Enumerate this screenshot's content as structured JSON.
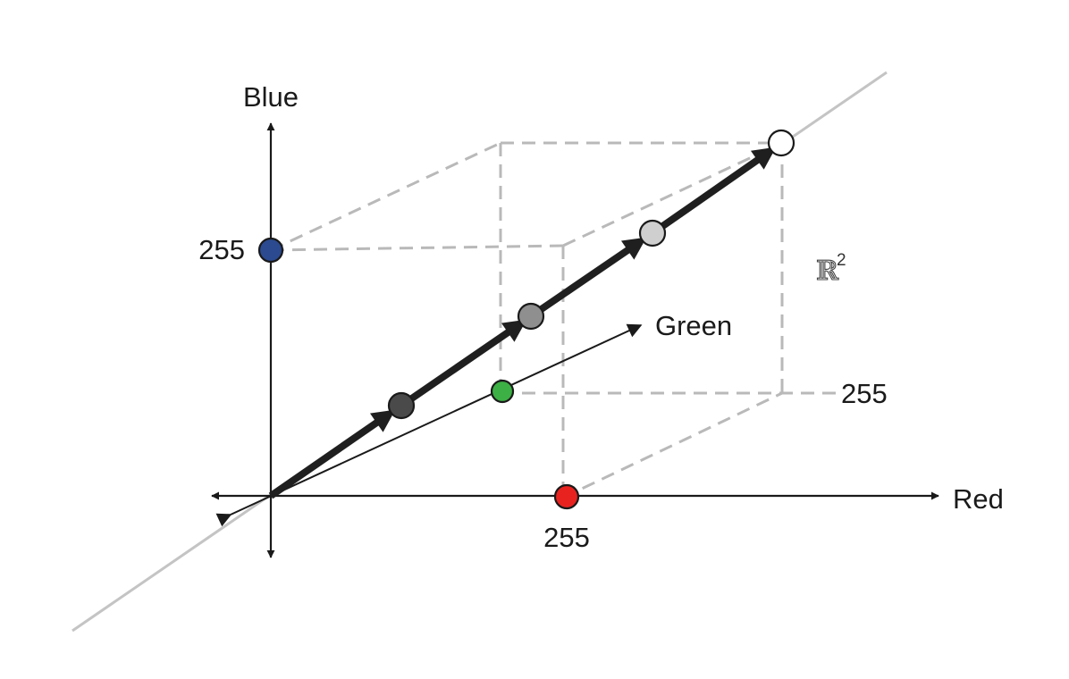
{
  "axes": {
    "x_label": "Red",
    "y_label": "Blue",
    "z_label": "Green"
  },
  "ticks": {
    "red_max": "255",
    "blue_max": "255",
    "green_max": "255"
  },
  "space": {
    "symbol": "ℝ",
    "exponent": "2"
  },
  "colors": {
    "red_point": "#e8231f",
    "blue_point": "#2b4a90",
    "green_point": "#3cb044",
    "gray_dark": "#4a4a4a",
    "gray_mid": "#8f8f8f",
    "gray_light": "#cfcfcf",
    "white_point": "#ffffff"
  }
}
